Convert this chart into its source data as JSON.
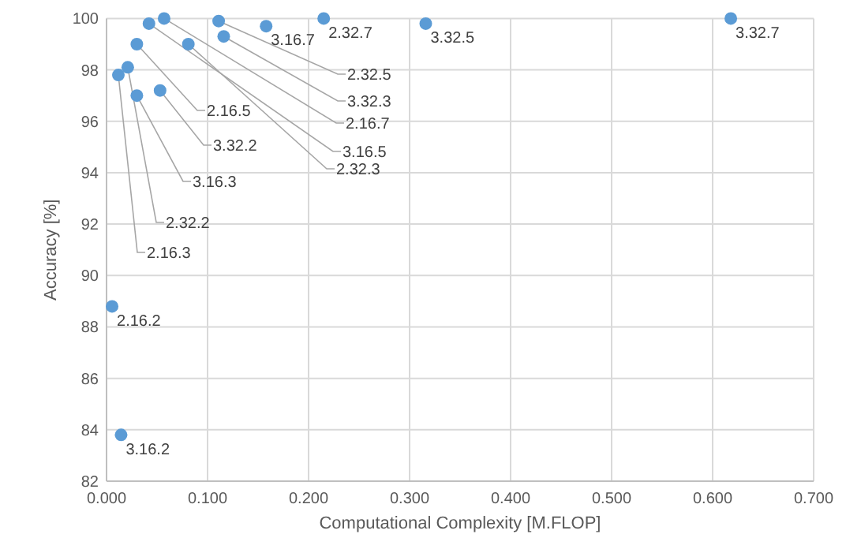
{
  "chart_data": {
    "type": "scatter",
    "xlabel": "Computational Complexity [M.FLOP]",
    "ylabel": "Accuracy [%]",
    "x": [
      0.0055,
      0.0144,
      0.0117,
      0.021,
      0.03,
      0.03,
      0.053,
      0.042,
      0.057,
      0.081,
      0.111,
      0.116,
      0.158,
      0.215,
      0.316,
      0.618
    ],
    "series": [
      {
        "color": "#5b9bd5",
        "values": [
          88.8,
          83.8,
          97.8,
          98.1,
          97.0,
          99.0,
          97.2,
          99.8,
          100.0,
          99.0,
          99.9,
          99.3,
          99.7,
          100.0,
          99.8,
          100.0
        ],
        "value_labels": [
          "2.16.2",
          "3.16.2",
          "2.16.3",
          "2.32.2",
          "3.16.3",
          "2.16.5",
          "3.32.2",
          "3.16.5",
          "2.16.7",
          "2.32.3",
          "2.32.5",
          "3.32.3",
          "3.16.7",
          "2.32.7",
          "3.32.5",
          "3.32.7"
        ]
      }
    ],
    "xlim": [
      0,
      0.7
    ],
    "xticks": [
      {
        "value": 0,
        "label": "0.000"
      },
      {
        "value": 0.1,
        "label": "0.100"
      },
      {
        "value": 0.2,
        "label": "0.200"
      },
      {
        "value": 0.3,
        "label": "0.300"
      },
      {
        "value": 0.4,
        "label": "0.400"
      },
      {
        "value": 0.5,
        "label": "0.500"
      },
      {
        "value": 0.6,
        "label": "0.600"
      },
      {
        "value": 0.7,
        "label": "0.700"
      }
    ],
    "ylim": [
      82,
      100
    ],
    "yticks": [
      82,
      84,
      86,
      88,
      90,
      92,
      94,
      96,
      98,
      100
    ],
    "grid": true,
    "marker": "circle"
  }
}
